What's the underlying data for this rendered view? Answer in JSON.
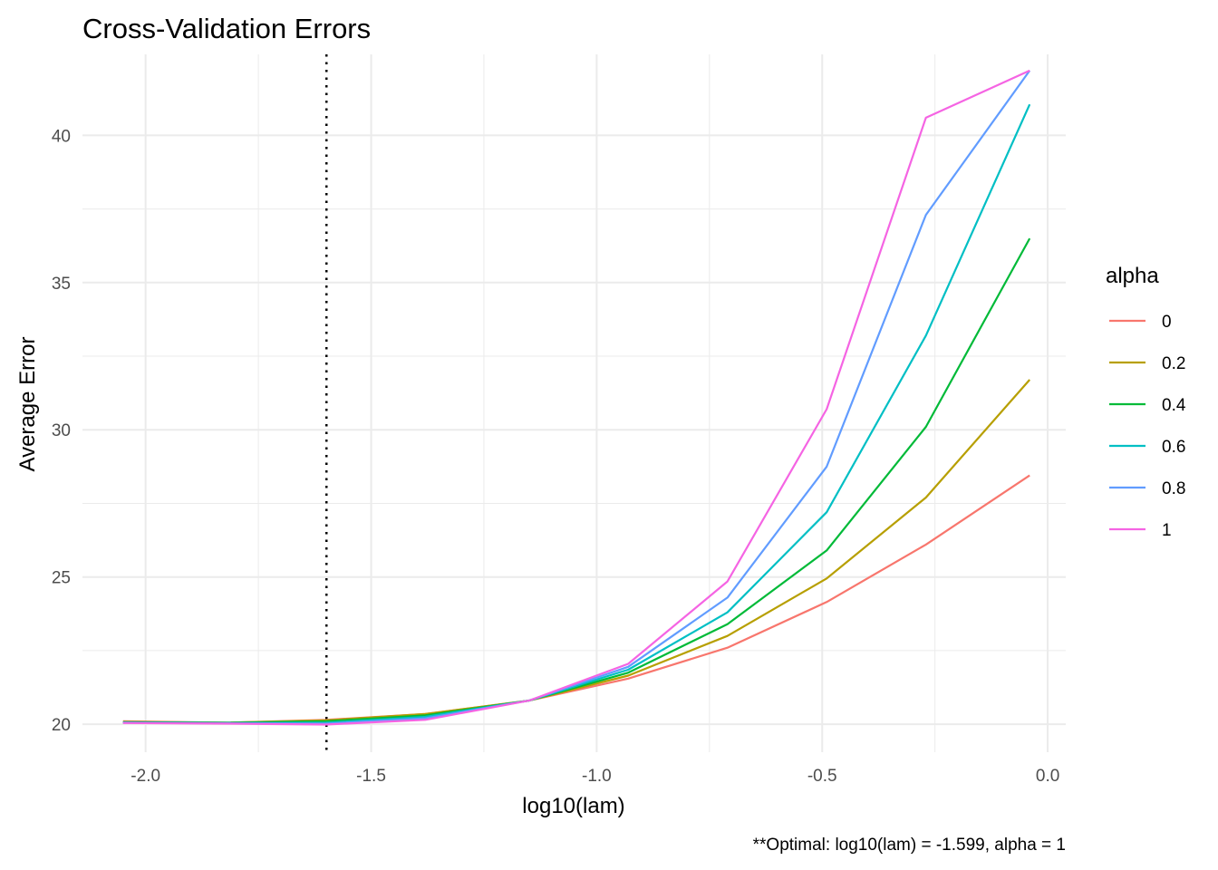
{
  "chart_data": {
    "type": "line",
    "title": "Cross-Validation Errors",
    "xlabel": "log10(lam)",
    "ylabel": "Average Error",
    "caption": "**Optimal: log10(lam) = -1.599, alpha = 1",
    "xlim": [
      -2.14,
      0.04
    ],
    "ylim": [
      19.05,
      42.75
    ],
    "x_ticks": [
      -2.0,
      -1.5,
      -1.0,
      -0.5,
      0.0
    ],
    "x_tick_labels": [
      "-2.0",
      "-1.5",
      "-1.0",
      "-0.5",
      "0.0"
    ],
    "y_ticks": [
      20,
      25,
      30,
      35,
      40
    ],
    "y_tick_labels": [
      "20",
      "25",
      "30",
      "35",
      "40"
    ],
    "grid": true,
    "vline": {
      "x": -1.599,
      "style": "dotted",
      "color": "#000000"
    },
    "legend": {
      "title": "alpha",
      "position": "right"
    },
    "x": [
      -2.05,
      -1.82,
      -1.6,
      -1.38,
      -1.15,
      -0.93,
      -0.71,
      -0.49,
      -0.27,
      -0.04
    ],
    "series": [
      {
        "name": "0",
        "color": "#F8766D",
        "values": [
          20.1,
          20.05,
          20.15,
          20.35,
          20.8,
          21.55,
          22.6,
          24.15,
          26.1,
          28.45
        ]
      },
      {
        "name": "0.2",
        "color": "#B79F00",
        "values": [
          20.08,
          20.05,
          20.13,
          20.35,
          20.8,
          21.65,
          23.0,
          24.95,
          27.7,
          31.7
        ]
      },
      {
        "name": "0.4",
        "color": "#00BA38",
        "values": [
          20.07,
          20.05,
          20.1,
          20.3,
          20.8,
          21.75,
          23.4,
          25.9,
          30.1,
          36.5
        ]
      },
      {
        "name": "0.6",
        "color": "#00BFC4",
        "values": [
          20.06,
          20.04,
          20.05,
          20.25,
          20.8,
          21.85,
          23.8,
          27.2,
          33.2,
          41.05
        ]
      },
      {
        "name": "0.8",
        "color": "#619CFF",
        "values": [
          20.05,
          20.03,
          20.02,
          20.2,
          20.8,
          21.95,
          24.3,
          28.75,
          37.3,
          42.2
        ]
      },
      {
        "name": "1",
        "color": "#F564E3",
        "values": [
          20.04,
          20.02,
          19.99,
          20.15,
          20.8,
          22.05,
          24.85,
          30.7,
          40.6,
          42.2
        ]
      }
    ]
  }
}
